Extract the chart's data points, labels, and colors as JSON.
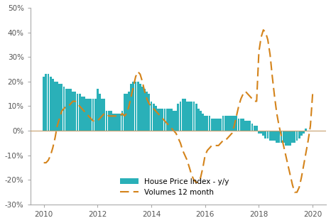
{
  "bar_color": "#2ab0b8",
  "line_color": "#d4831a",
  "background_color": "#ffffff",
  "ylim": [
    -0.3,
    0.5
  ],
  "yticks": [
    -0.3,
    -0.2,
    -0.1,
    0.0,
    0.1,
    0.2,
    0.3,
    0.4,
    0.5
  ],
  "ytick_labels": [
    "-30%",
    "-20%",
    "-10%",
    "0%",
    "10%",
    "20%",
    "30%",
    "40%",
    "50%"
  ],
  "xticks": [
    2010,
    2012,
    2014,
    2016,
    2018,
    2020
  ],
  "xlim": [
    2009.5,
    2020.5
  ],
  "legend_bar_label": "House Price Index - y/y",
  "legend_line_label": "Volumes 12 month",
  "bar_dates": [
    2010.0,
    2010.083,
    2010.167,
    2010.25,
    2010.333,
    2010.417,
    2010.5,
    2010.583,
    2010.667,
    2010.75,
    2010.833,
    2010.917,
    2011.0,
    2011.083,
    2011.167,
    2011.25,
    2011.333,
    2011.417,
    2011.5,
    2011.583,
    2011.667,
    2011.75,
    2011.833,
    2011.917,
    2012.0,
    2012.083,
    2012.167,
    2012.25,
    2012.333,
    2012.417,
    2012.5,
    2012.583,
    2012.667,
    2012.75,
    2012.833,
    2012.917,
    2013.0,
    2013.083,
    2013.167,
    2013.25,
    2013.333,
    2013.417,
    2013.5,
    2013.583,
    2013.667,
    2013.75,
    2013.833,
    2013.917,
    2014.0,
    2014.083,
    2014.167,
    2014.25,
    2014.333,
    2014.417,
    2014.5,
    2014.583,
    2014.667,
    2014.75,
    2014.833,
    2014.917,
    2015.0,
    2015.083,
    2015.167,
    2015.25,
    2015.333,
    2015.417,
    2015.5,
    2015.583,
    2015.667,
    2015.75,
    2015.833,
    2015.917,
    2016.0,
    2016.083,
    2016.167,
    2016.25,
    2016.333,
    2016.417,
    2016.5,
    2016.583,
    2016.667,
    2016.75,
    2016.833,
    2016.917,
    2017.0,
    2017.083,
    2017.167,
    2017.25,
    2017.333,
    2017.417,
    2017.5,
    2017.583,
    2017.667,
    2017.75,
    2017.833,
    2017.917,
    2018.0,
    2018.083,
    2018.167,
    2018.25,
    2018.333,
    2018.417,
    2018.5,
    2018.583,
    2018.667,
    2018.75,
    2018.833,
    2018.917,
    2019.0,
    2019.083,
    2019.167,
    2019.25,
    2019.333,
    2019.417,
    2019.5,
    2019.583,
    2019.667,
    2019.75
  ],
  "bar_values": [
    0.22,
    0.23,
    0.23,
    0.22,
    0.21,
    0.2,
    0.2,
    0.19,
    0.19,
    0.18,
    0.17,
    0.17,
    0.17,
    0.16,
    0.16,
    0.15,
    0.15,
    0.14,
    0.14,
    0.13,
    0.13,
    0.13,
    0.13,
    0.13,
    0.17,
    0.15,
    0.13,
    0.13,
    0.08,
    0.08,
    0.08,
    0.07,
    0.07,
    0.07,
    0.07,
    0.08,
    0.15,
    0.15,
    0.16,
    0.19,
    0.2,
    0.2,
    0.2,
    0.19,
    0.18,
    0.17,
    0.16,
    0.15,
    0.12,
    0.11,
    0.1,
    0.09,
    0.09,
    0.09,
    0.09,
    0.09,
    0.09,
    0.09,
    0.08,
    0.08,
    0.11,
    0.12,
    0.13,
    0.13,
    0.12,
    0.12,
    0.12,
    0.12,
    0.11,
    0.09,
    0.08,
    0.07,
    0.06,
    0.06,
    0.06,
    0.05,
    0.05,
    0.05,
    0.05,
    0.05,
    0.06,
    0.06,
    0.06,
    0.06,
    0.06,
    0.06,
    0.06,
    0.05,
    0.05,
    0.05,
    0.04,
    0.04,
    0.04,
    0.03,
    0.02,
    0.02,
    -0.01,
    -0.01,
    -0.02,
    -0.03,
    -0.03,
    -0.04,
    -0.04,
    -0.04,
    -0.05,
    -0.05,
    -0.05,
    -0.05,
    -0.06,
    -0.06,
    -0.06,
    -0.05,
    -0.05,
    -0.04,
    -0.03,
    -0.02,
    -0.01,
    0.01
  ],
  "line_dates": [
    2010.0,
    2010.083,
    2010.167,
    2010.25,
    2010.333,
    2010.417,
    2010.5,
    2010.583,
    2010.667,
    2010.75,
    2010.833,
    2010.917,
    2011.0,
    2011.083,
    2011.167,
    2011.25,
    2011.333,
    2011.417,
    2011.5,
    2011.583,
    2011.667,
    2011.75,
    2011.833,
    2011.917,
    2012.0,
    2012.083,
    2012.167,
    2012.25,
    2012.333,
    2012.417,
    2012.5,
    2012.583,
    2012.667,
    2012.75,
    2012.833,
    2012.917,
    2013.0,
    2013.083,
    2013.167,
    2013.25,
    2013.333,
    2013.417,
    2013.5,
    2013.583,
    2013.667,
    2013.75,
    2013.833,
    2013.917,
    2014.0,
    2014.083,
    2014.167,
    2014.25,
    2014.333,
    2014.417,
    2014.5,
    2014.583,
    2014.667,
    2014.75,
    2014.833,
    2014.917,
    2015.0,
    2015.083,
    2015.167,
    2015.25,
    2015.333,
    2015.417,
    2015.5,
    2015.583,
    2015.667,
    2015.75,
    2015.833,
    2015.917,
    2016.0,
    2016.083,
    2016.167,
    2016.25,
    2016.333,
    2016.417,
    2016.5,
    2016.583,
    2016.667,
    2016.75,
    2016.833,
    2016.917,
    2017.0,
    2017.083,
    2017.167,
    2017.25,
    2017.333,
    2017.417,
    2017.5,
    2017.583,
    2017.667,
    2017.75,
    2017.833,
    2017.917,
    2018.0,
    2018.083,
    2018.167,
    2018.25,
    2018.333,
    2018.417,
    2018.5,
    2018.583,
    2018.667,
    2018.75,
    2018.833,
    2018.917,
    2019.0,
    2019.083,
    2019.167,
    2019.25,
    2019.333,
    2019.417,
    2019.5,
    2019.583,
    2019.667,
    2019.75,
    2019.833,
    2019.917,
    2020.0
  ],
  "line_values": [
    -0.13,
    -0.13,
    -0.12,
    -0.1,
    -0.07,
    -0.03,
    0.02,
    0.05,
    0.08,
    0.09,
    0.1,
    0.1,
    0.11,
    0.12,
    0.12,
    0.11,
    0.1,
    0.09,
    0.08,
    0.07,
    0.06,
    0.05,
    0.04,
    0.04,
    0.04,
    0.05,
    0.06,
    0.07,
    0.07,
    0.06,
    0.06,
    0.06,
    0.06,
    0.06,
    0.06,
    0.07,
    0.06,
    0.07,
    0.1,
    0.14,
    0.18,
    0.22,
    0.24,
    0.23,
    0.2,
    0.16,
    0.13,
    0.11,
    0.1,
    0.09,
    0.08,
    0.07,
    0.06,
    0.05,
    0.04,
    0.03,
    0.02,
    0.01,
    0.0,
    -0.01,
    -0.03,
    -0.05,
    -0.08,
    -0.1,
    -0.12,
    -0.15,
    -0.18,
    -0.2,
    -0.21,
    -0.21,
    -0.19,
    -0.15,
    -0.1,
    -0.08,
    -0.07,
    -0.06,
    -0.06,
    -0.06,
    -0.06,
    -0.05,
    -0.04,
    -0.04,
    -0.03,
    -0.02,
    -0.01,
    0.02,
    0.06,
    0.1,
    0.13,
    0.15,
    0.16,
    0.15,
    0.14,
    0.13,
    0.12,
    0.12,
    0.32,
    0.38,
    0.41,
    0.4,
    0.37,
    0.31,
    0.22,
    0.14,
    0.07,
    0.02,
    -0.02,
    -0.06,
    -0.1,
    -0.14,
    -0.18,
    -0.22,
    -0.25,
    -0.25,
    -0.23,
    -0.19,
    -0.14,
    -0.09,
    -0.04,
    0.02,
    0.15
  ]
}
